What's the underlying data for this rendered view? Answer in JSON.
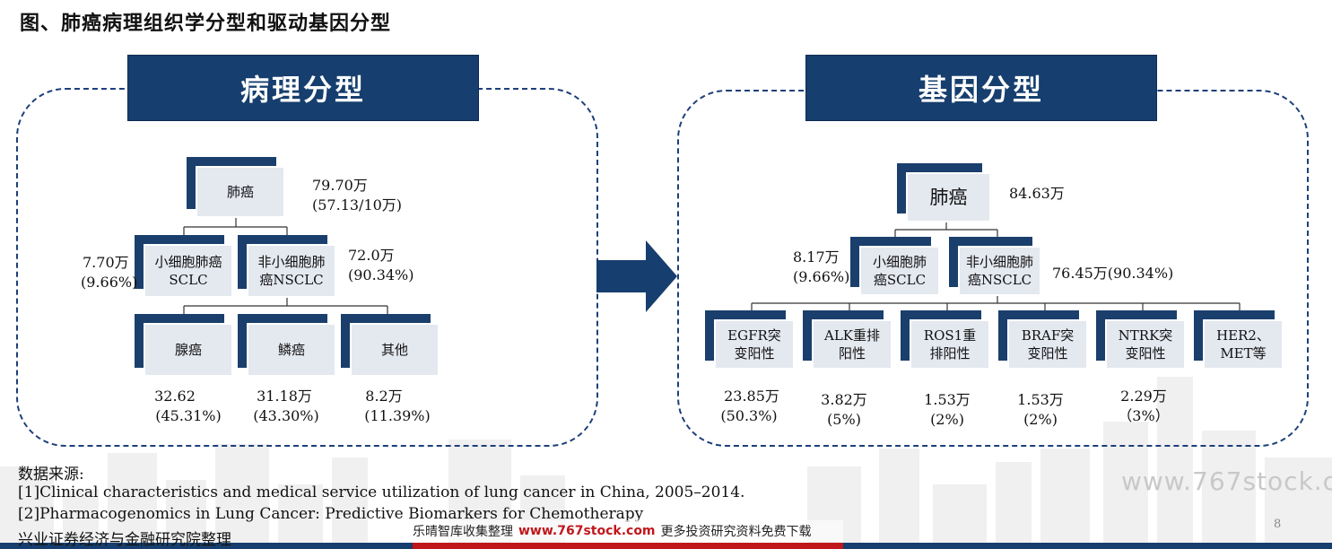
{
  "title": "图、肺癌病理组织学分型和驱动基因分型",
  "colors": {
    "header_bg": "#163e6e",
    "node_back": "#1a3f6c",
    "node_face": "#e4e8ef",
    "dashed_border": "#1d3f7a",
    "arrow": "#163e6e",
    "banner_red": "#c0171c"
  },
  "left_panel": {
    "header": "病理分型",
    "root": {
      "label": "肺癌",
      "value": "79.70万",
      "sub": "(57.13/10万)"
    },
    "sclc": {
      "label_line1": "小细胞肺癌",
      "label_line2": "SCLC",
      "value": "7.70万",
      "sub": "(9.66%)"
    },
    "nsclc": {
      "label_line1": "非小细胞肺",
      "label_line2": "癌NSCLC",
      "value": "72.0万",
      "sub": "(90.34%)"
    },
    "leaves": [
      {
        "label": "腺癌",
        "value": "32.62",
        "sub": "(45.31%)"
      },
      {
        "label": "鳞癌",
        "value": "31.18万",
        "sub": "(43.30%)"
      },
      {
        "label": "其他",
        "value": "8.2万",
        "sub": "(11.39%)"
      }
    ]
  },
  "right_panel": {
    "header": "基因分型",
    "root": {
      "label": "肺癌",
      "value": "84.63万"
    },
    "sclc": {
      "label_line1": "小细胞肺",
      "label_line2": "癌SCLC",
      "value": "8.17万",
      "sub": "(9.66%)"
    },
    "nsclc": {
      "label_line1": "非小细胞肺",
      "label_line2": "癌NSCLC",
      "value": "76.45万(90.34%)"
    },
    "leaves": [
      {
        "label_line1": "EGFR突",
        "label_line2": "变阳性",
        "value": "23.85万",
        "sub": "(50.3%)"
      },
      {
        "label_line1": "ALK重排",
        "label_line2": "阳性",
        "value": "3.82万",
        "sub": "(5%)"
      },
      {
        "label_line1": "ROS1重",
        "label_line2": "排阳性",
        "value": "1.53万",
        "sub": "(2%)"
      },
      {
        "label_line1": "BRAF突",
        "label_line2": "变阳性",
        "value": "1.53万",
        "sub": "(2%)"
      },
      {
        "label_line1": "NTRK突",
        "label_line2": "变阳性",
        "value": "2.29万",
        "sub": "（3%）"
      },
      {
        "label_line1": "HER2、",
        "label_line2": "MET等",
        "value": "",
        "sub": ""
      }
    ]
  },
  "sources": {
    "heading": "数据来源:",
    "refs": [
      "[1]Clinical characteristics and medical service utilization of lung cancer in China, 2005–2014.",
      "[2]Pharmacogenomics in Lung Cancer: Predictive Biomarkers for Chemotherapy"
    ],
    "org": "兴业证券经济与金融研究院整理"
  },
  "banner": {
    "part1": "乐晴智库收集整理",
    "part2": "www.767stock.com",
    "part3": "更多投资研究资料免费下载"
  },
  "watermark": "www.767stock.c",
  "page_number": "8"
}
